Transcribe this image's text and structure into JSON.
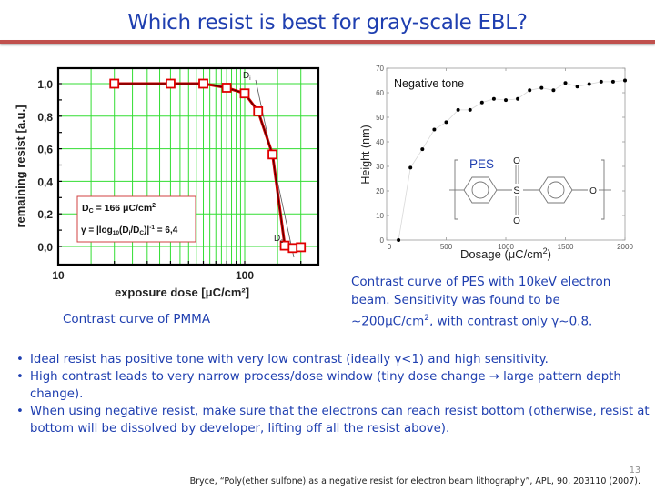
{
  "slide": {
    "title": "Which resist is best for gray-scale EBL?",
    "page_number": "13",
    "accent_color": "#c0504d",
    "text_color": "#1f3fb0"
  },
  "pmma_figure": {
    "caption": "Contrast curve of PMMA",
    "annotation": {
      "dc_line": "D C = 166 μC/cm²",
      "dc_label": "D",
      "dc_sub": "C",
      "dc_value": " = 166 μC/cm",
      "dc_sup": "2",
      "gamma_prefix": "γ = |log",
      "gamma_sub10": "10",
      "gamma_mid": "(D",
      "gamma_sub_i": "i",
      "gamma_slash": "/D",
      "gamma_sub_c": "C",
      "gamma_close": ")|",
      "gamma_sup": "-1",
      "gamma_value": " = 6,4"
    },
    "labels": {
      "di": "D",
      "di_sub": "i",
      "dc": "D",
      "dc_sub": "c"
    }
  },
  "pes_figure": {
    "caption_line1": "Contrast curve of PES with 10keV electron",
    "caption_line2": "beam. Sensitivity was found to be",
    "caption_line3_a": "~200μC/cm",
    "caption_line3_sup": "2",
    "caption_line3_b": ", with contrast only γ~0.8.",
    "legend_note": "Negative tone",
    "molecule_label": "PES",
    "molecule_atoms": {
      "sulfur": "S",
      "oxygen_top": "O",
      "oxygen_bottom": "O",
      "ether_oxygen": "O"
    }
  },
  "bullets": [
    {
      "text": "Ideal resist has positive tone with very low contrast (ideally γ<1) and high sensitivity."
    },
    {
      "text": "High contrast leads to very narrow process/dose window (tiny dose change → large pattern depth change)."
    },
    {
      "text": "When using negative resist, make sure that the electrons can reach resist bottom (otherwise, resist at bottom will be dissolved by developer, lifting off all the resist above)."
    }
  ],
  "citation": "Bryce, “Poly(ether sulfone) as a negative resist for electron beam lithography”, APL, 90, 203110 (2007).",
  "chart_data": [
    {
      "type": "line",
      "title": "",
      "xlabel": "exposure dose [μC/cm²]",
      "ylabel": "remaining resist [a.u.]",
      "xscale": "log",
      "xlim": [
        10,
        250
      ],
      "ylim": [
        -0.1,
        1.1
      ],
      "x_ticks": [
        "10",
        "100"
      ],
      "y_ticks": [
        "0,0",
        "0,2",
        "0,4",
        "0,6",
        "0,8",
        "1,0"
      ],
      "grid": true,
      "grid_color": "#33dd33",
      "series": [
        {
          "name": "PMMA",
          "marker": "open-square",
          "color": "#e00000",
          "x": [
            20,
            40,
            60,
            80,
            100,
            118,
            141,
            164,
            181,
            200
          ],
          "y": [
            1.0,
            1.0,
            1.0,
            0.975,
            0.94,
            0.83,
            0.565,
            0.005,
            -0.01,
            -0.005
          ]
        }
      ],
      "annotations": [
        "D_i",
        "D_c",
        "D_C = 166 μC/cm²",
        "γ = |log10(Di/DC)|^-1 = 6,4"
      ]
    },
    {
      "type": "scatter",
      "title": "",
      "xlabel": "Dosage (μC/cm²)",
      "ylabel": "Height (nm)",
      "xlim": [
        0,
        2000
      ],
      "ylim": [
        0,
        70
      ],
      "x_ticks": [
        "0",
        "500",
        "1000",
        "1500",
        "2000"
      ],
      "y_ticks": [
        "0",
        "10",
        "20",
        "30",
        "40",
        "50",
        "60",
        "70"
      ],
      "grid": false,
      "series": [
        {
          "name": "PES (Negative tone)",
          "marker": "filled-circle",
          "color": "#000000",
          "x": [
            100,
            200,
            300,
            400,
            500,
            600,
            700,
            800,
            900,
            1000,
            1100,
            1200,
            1300,
            1400,
            1500,
            1600,
            1700,
            1800,
            1900,
            2000
          ],
          "y": [
            0,
            29.5,
            37,
            45,
            48,
            53,
            53,
            56,
            57.5,
            57,
            57.5,
            61,
            62,
            61,
            64,
            62.5,
            63.5,
            64.5,
            64.5,
            65
          ]
        }
      ],
      "annotations": [
        "Negative tone",
        "PES"
      ]
    }
  ]
}
